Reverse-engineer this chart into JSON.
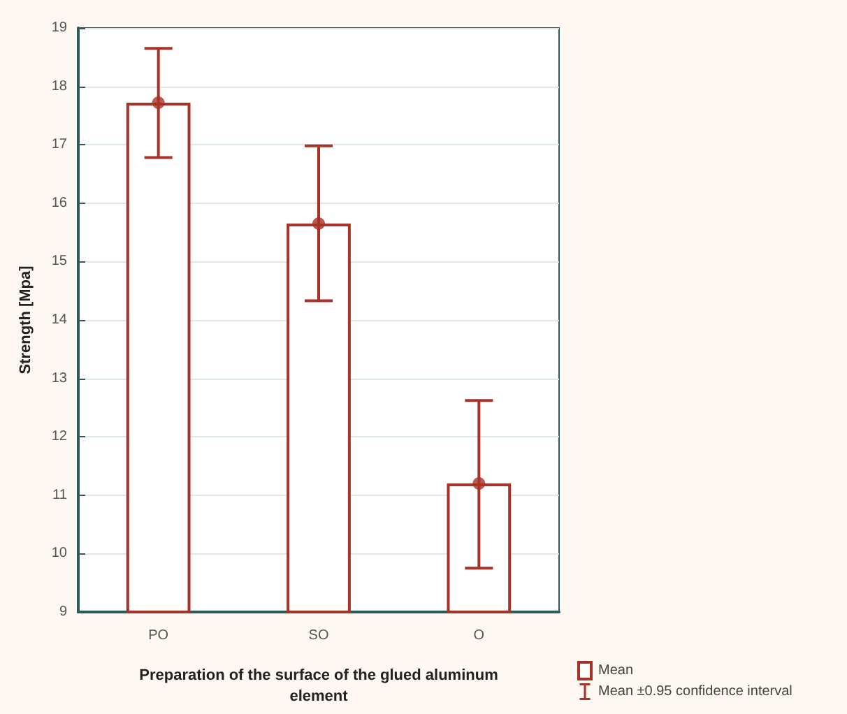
{
  "chart_data": {
    "type": "bar",
    "xlabel": "Preparation of the surface of the glued aluminum element",
    "ylabel": "Strength [Mpa]",
    "categories": [
      "PO",
      "SO",
      "O"
    ],
    "series": [
      {
        "name": "Mean",
        "color": "#a83228",
        "values": [
          17.72,
          15.65,
          11.2
        ],
        "errors": [
          [
            16.78,
            18.65
          ],
          [
            14.33,
            16.98
          ],
          [
            9.75,
            12.62
          ]
        ]
      },
      {
        "type": "scatter",
        "x": [
          "PO",
          "SO",
          "O"
        ],
        "color": "#a83228",
        "values": [
          17.72,
          15.65,
          11.2
        ]
      }
    ],
    "annotations": [
      "Mean ±0.95 confidence interval"
    ],
    "ylim": [
      9,
      19
    ],
    "yticks": [
      9,
      10,
      11,
      12,
      13,
      14,
      15,
      16,
      17,
      18,
      19
    ],
    "grid": "y",
    "legend": "bottom right",
    "marker": "circle"
  }
}
